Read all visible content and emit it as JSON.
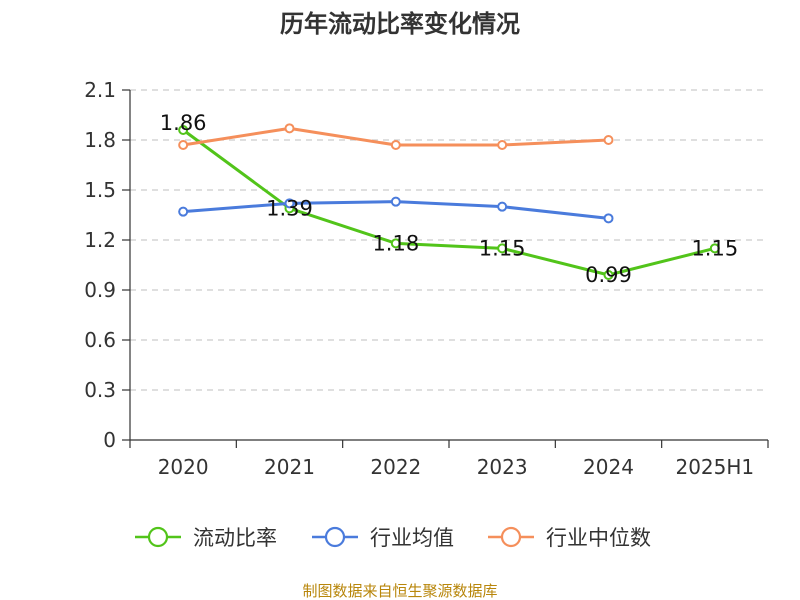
{
  "chart_data": {
    "type": "line",
    "title": "历年流动比率变化情况",
    "categories": [
      "2020",
      "2021",
      "2022",
      "2023",
      "2024",
      "2025H1"
    ],
    "y_ticks": [
      "0",
      "0.3",
      "0.6",
      "0.9",
      "1.2",
      "1.5",
      "1.8",
      "2.1"
    ],
    "ylim": [
      0,
      2.1
    ],
    "grid": true,
    "legend_position": "bottom",
    "series": [
      {
        "name": "流动比率",
        "color": "#52c41a",
        "values": [
          1.86,
          1.39,
          1.18,
          1.15,
          0.99,
          1.15
        ],
        "labels": [
          "1.86",
          "1.39",
          "1.18",
          "1.15",
          "0.99",
          "1.15"
        ]
      },
      {
        "name": "行业均值",
        "color": "#4a7bdc",
        "values": [
          1.37,
          1.42,
          1.43,
          1.4,
          1.33,
          null
        ]
      },
      {
        "name": "行业中位数",
        "color": "#f58f5b",
        "values": [
          1.77,
          1.87,
          1.77,
          1.77,
          1.8,
          null
        ]
      }
    ],
    "source": "制图数据来自恒生聚源数据库"
  }
}
